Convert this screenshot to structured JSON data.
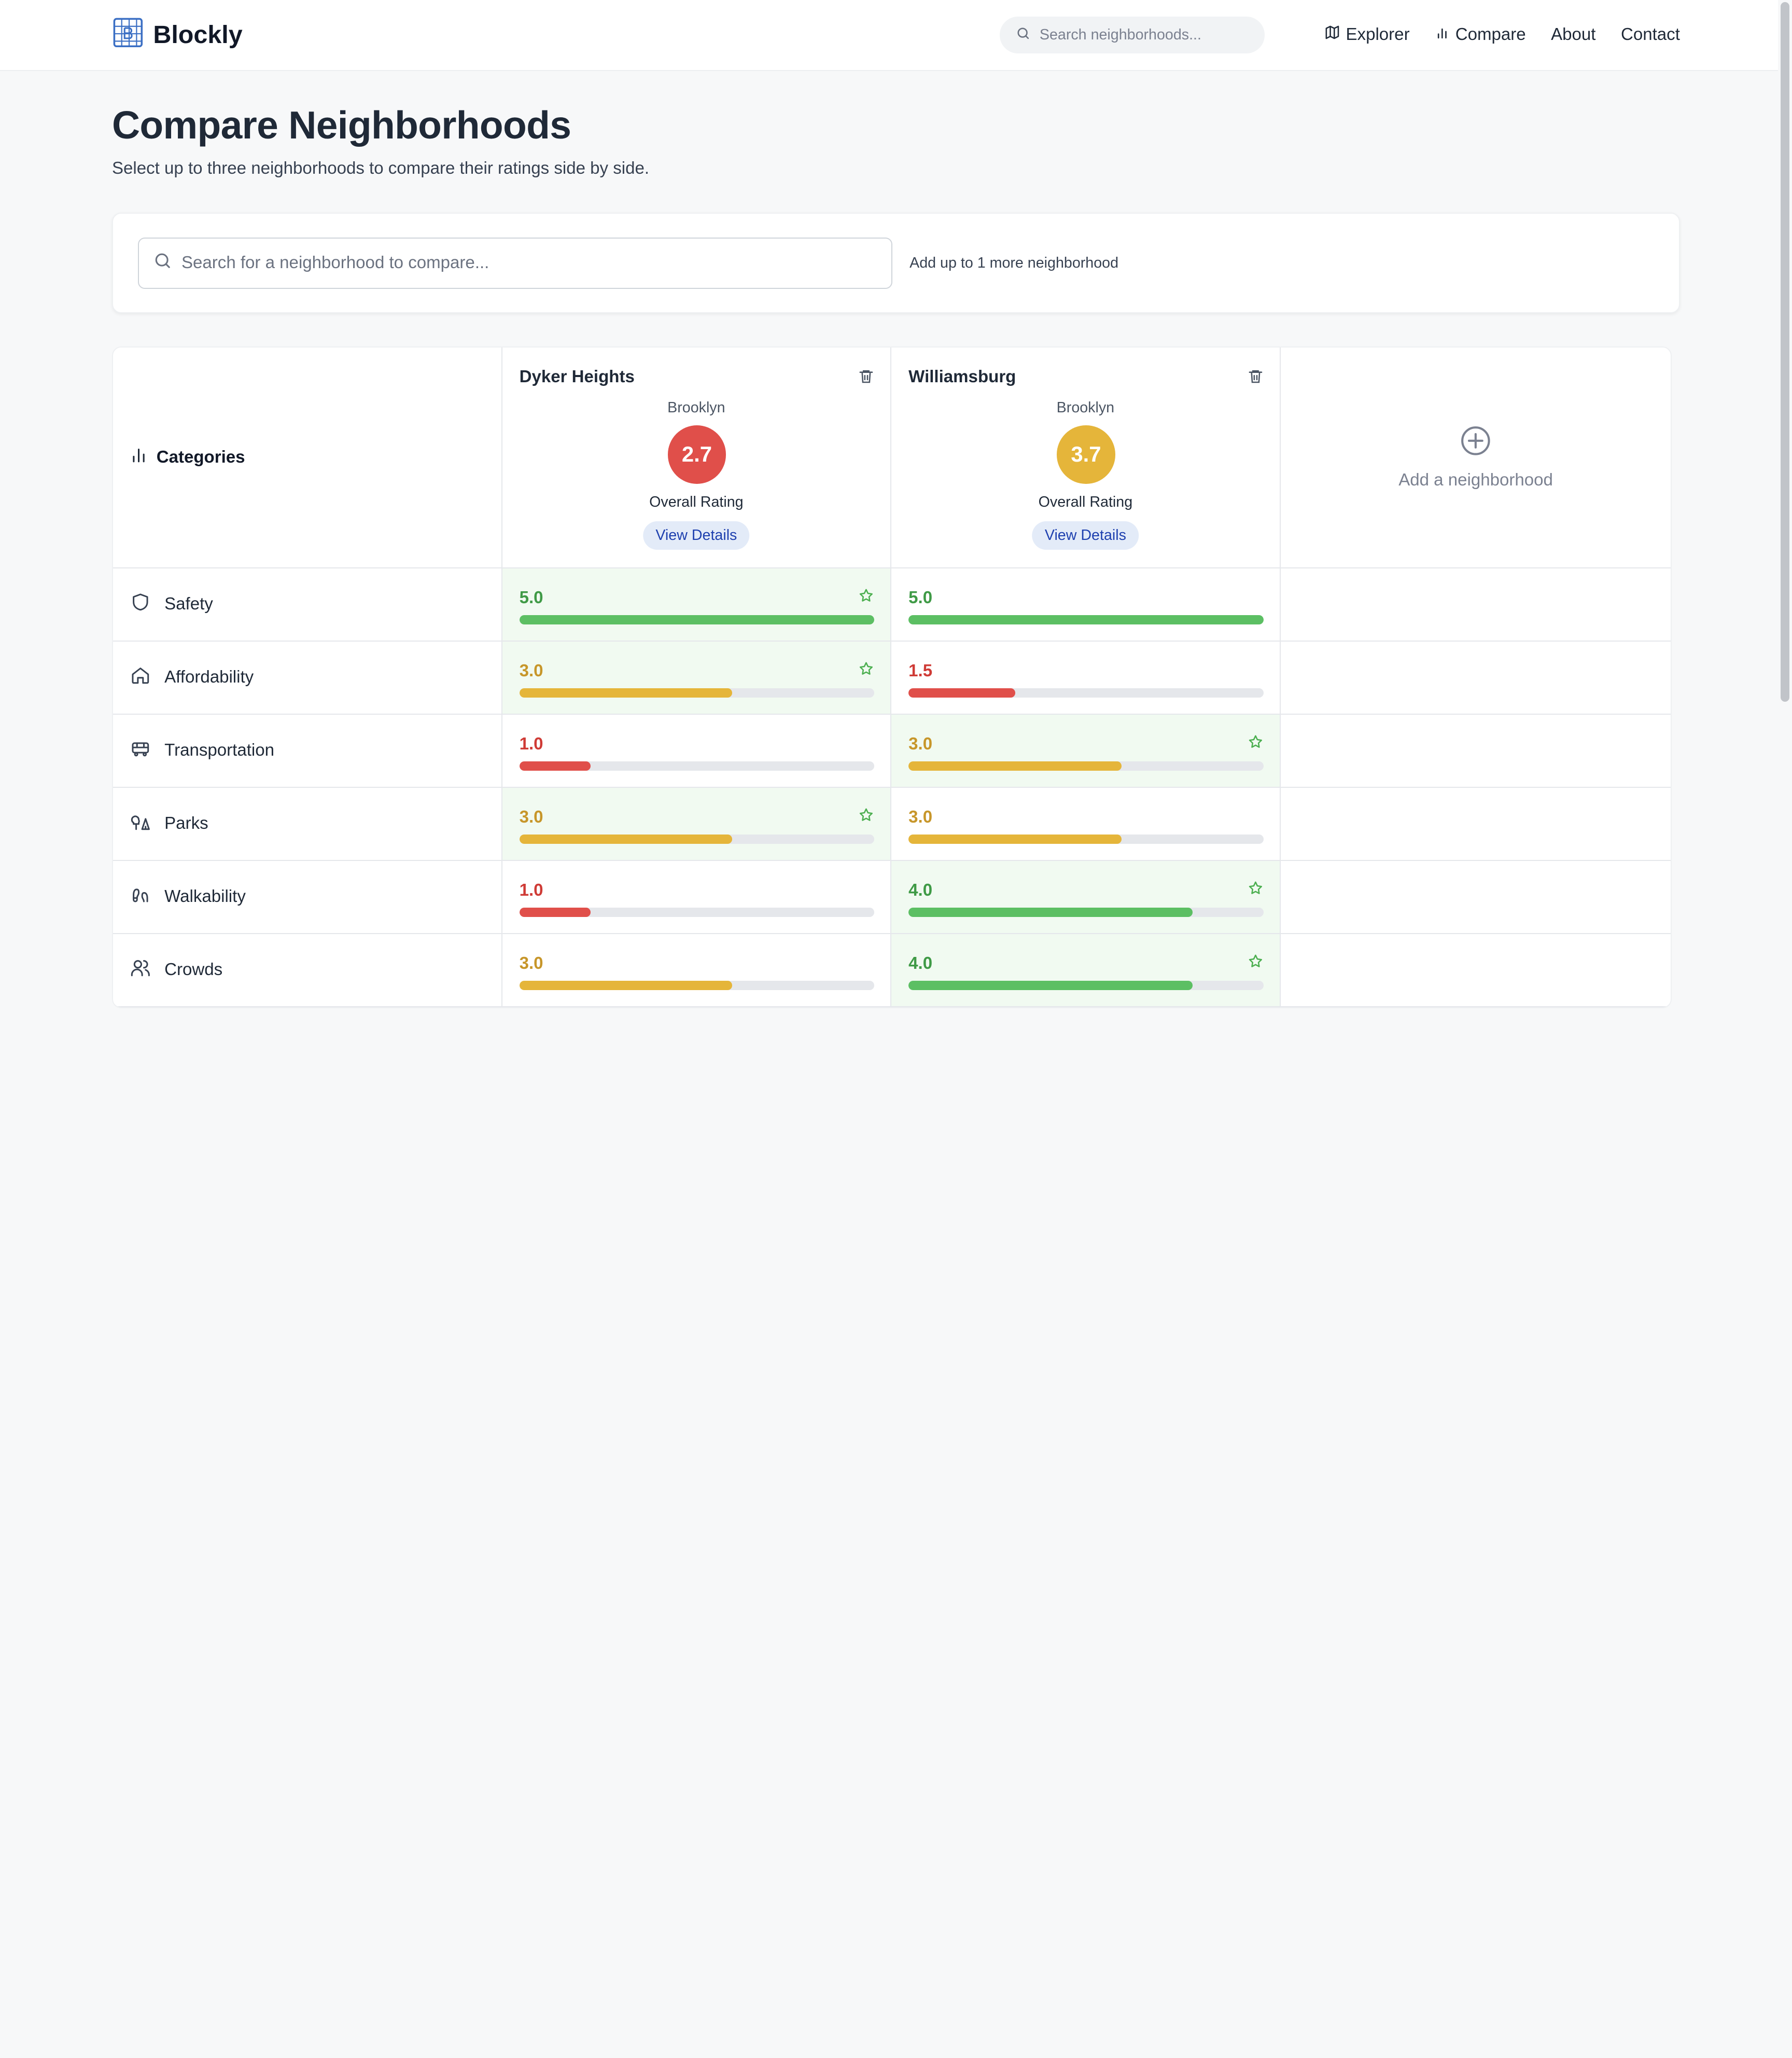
{
  "brand": {
    "name": "Blockly"
  },
  "nav": {
    "search_placeholder": "Search neighborhoods...",
    "links": [
      {
        "label": "Explorer",
        "icon": "map-icon"
      },
      {
        "label": "Compare",
        "icon": "bar-chart-icon"
      },
      {
        "label": "About"
      },
      {
        "label": "Contact"
      }
    ]
  },
  "page": {
    "title": "Compare Neighborhoods",
    "subtitle": "Select up to three neighborhoods to compare their ratings side by side."
  },
  "compare_search": {
    "placeholder": "Search for a neighborhood to compare...",
    "hint": "Add up to 1 more neighborhood"
  },
  "table": {
    "categories_label": "Categories",
    "overall_label": "Overall Rating",
    "view_details_label": "View Details",
    "add_label": "Add a neighborhood",
    "neighborhoods": [
      {
        "name": "Dyker Heights",
        "borough": "Brooklyn",
        "rating": "2.7",
        "rating_color": "#e04f4a"
      },
      {
        "name": "Williamsburg",
        "borough": "Brooklyn",
        "rating": "3.7",
        "rating_color": "#e5b53a"
      }
    ],
    "rows": [
      {
        "category": "Safety",
        "icon": "shield-icon",
        "scores": [
          {
            "value": "5.0",
            "fraction": 1.0,
            "best": true,
            "star": true
          },
          {
            "value": "5.0",
            "fraction": 1.0,
            "best": false,
            "star": false
          }
        ]
      },
      {
        "category": "Affordability",
        "icon": "home-icon",
        "scores": [
          {
            "value": "3.0",
            "fraction": 0.6,
            "best": true,
            "star": true
          },
          {
            "value": "1.5",
            "fraction": 0.3,
            "best": false,
            "star": false
          }
        ]
      },
      {
        "category": "Transportation",
        "icon": "bus-icon",
        "scores": [
          {
            "value": "1.0",
            "fraction": 0.2,
            "best": false,
            "star": false
          },
          {
            "value": "3.0",
            "fraction": 0.6,
            "best": true,
            "star": true
          }
        ]
      },
      {
        "category": "Parks",
        "icon": "trees-icon",
        "scores": [
          {
            "value": "3.0",
            "fraction": 0.6,
            "best": true,
            "star": true
          },
          {
            "value": "3.0",
            "fraction": 0.6,
            "best": false,
            "star": false
          }
        ]
      },
      {
        "category": "Walkability",
        "icon": "footprints-icon",
        "scores": [
          {
            "value": "1.0",
            "fraction": 0.2,
            "best": false,
            "star": false
          },
          {
            "value": "4.0",
            "fraction": 0.8,
            "best": true,
            "star": true
          }
        ]
      },
      {
        "category": "Crowds",
        "icon": "users-icon",
        "scores": [
          {
            "value": "3.0",
            "fraction": 0.6,
            "best": false,
            "star": false
          },
          {
            "value": "4.0",
            "fraction": 0.8,
            "best": true,
            "star": true
          }
        ]
      }
    ]
  },
  "colors": {
    "high": "#5cbf63",
    "mid": "#e5b53a",
    "low": "#e04f4a",
    "high_text": "#3f9a46",
    "mid_text": "#c7962a",
    "low_text": "#cf3b36",
    "star": "#4caf50"
  }
}
